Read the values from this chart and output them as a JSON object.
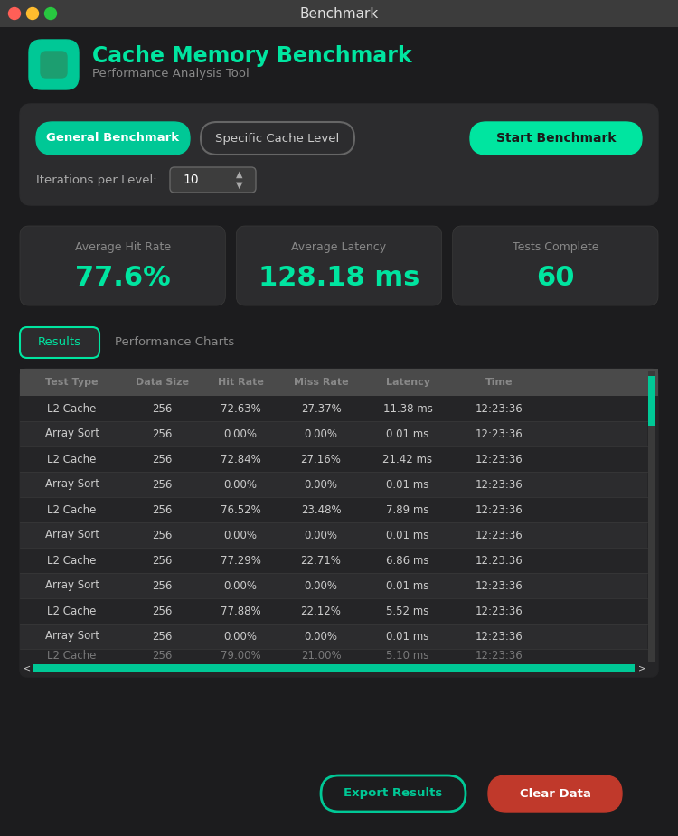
{
  "bg_color": "#1c1c1e",
  "titlebar_color": "#3c3c3c",
  "titlebar_text": "Benchmark",
  "titlebar_text_color": "#e0e0e0",
  "dot_colors": [
    "#ff5f57",
    "#febc2e",
    "#28c840"
  ],
  "panel_bg": "#2c2c2e",
  "card_bg": "#2c2c2e",
  "accent_color": "#00e5a0",
  "accent2_color": "#00c896",
  "header_title": "Cache Memory Benchmark",
  "header_subtitle": "Performance Analysis Tool",
  "header_icon_color": "#00c896",
  "btn_general_label": "General Benchmark",
  "btn_specific_label": "Specific Cache Level",
  "btn_start_label": "Start Benchmark",
  "btn_start_color": "#00e5a0",
  "btn_general_bg": "#00c896",
  "btn_specific_bg": "#3a3a3a",
  "iterations_label": "Iterations per Level:",
  "iterations_value": "10",
  "stat_labels": [
    "Average Hit Rate",
    "Average Latency",
    "Tests Complete"
  ],
  "stat_values": [
    "77.6%",
    "128.18 ms",
    "60"
  ],
  "tab_results": "Results",
  "tab_charts": "Performance Charts",
  "table_headers": [
    "Test Type",
    "Data Size",
    "Hit Rate",
    "Miss Rate",
    "Latency",
    "Time"
  ],
  "table_header_color": "#4a4a4a",
  "table_header_text": "#888888",
  "table_bg_even": "#252527",
  "table_bg_odd": "#2c2c2e",
  "table_text": "#cccccc",
  "table_rows": [
    [
      "L2 Cache",
      "256",
      "72.63%",
      "27.37%",
      "11.38 ms",
      "12:23:36"
    ],
    [
      "Array Sort",
      "256",
      "0.00%",
      "0.00%",
      "0.01 ms",
      "12:23:36"
    ],
    [
      "L2 Cache",
      "256",
      "72.84%",
      "27.16%",
      "21.42 ms",
      "12:23:36"
    ],
    [
      "Array Sort",
      "256",
      "0.00%",
      "0.00%",
      "0.01 ms",
      "12:23:36"
    ],
    [
      "L2 Cache",
      "256",
      "76.52%",
      "23.48%",
      "7.89 ms",
      "12:23:36"
    ],
    [
      "Array Sort",
      "256",
      "0.00%",
      "0.00%",
      "0.01 ms",
      "12:23:36"
    ],
    [
      "L2 Cache",
      "256",
      "77.29%",
      "22.71%",
      "6.86 ms",
      "12:23:36"
    ],
    [
      "Array Sort",
      "256",
      "0.00%",
      "0.00%",
      "0.01 ms",
      "12:23:36"
    ],
    [
      "L2 Cache",
      "256",
      "77.88%",
      "22.12%",
      "5.52 ms",
      "12:23:36"
    ],
    [
      "Array Sort",
      "256",
      "0.00%",
      "0.00%",
      "0.01 ms",
      "12:23:36"
    ],
    [
      "L2 Cache",
      "256",
      "79.00%",
      "21.00%",
      "5.10 ms",
      "12:23:36"
    ]
  ],
  "btn_export_label": "Export Results",
  "btn_export_color": "#00c896",
  "btn_clear_label": "Clear Data",
  "btn_clear_color": "#c0392b",
  "scrollbar_track": "#3a3a3a",
  "scrollbar_thumb": "#00c896",
  "horiz_scroll_color": "#00c896"
}
